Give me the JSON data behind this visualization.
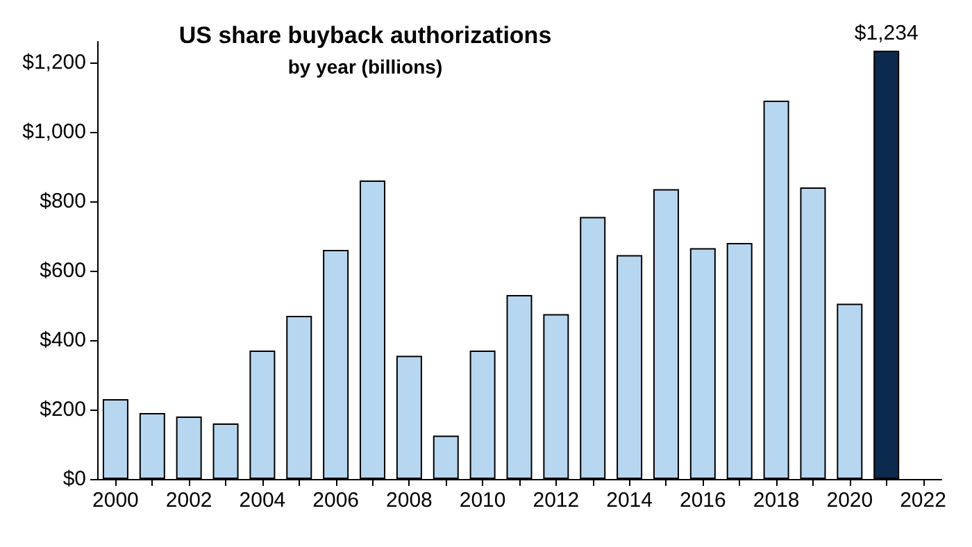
{
  "chart_data": {
    "type": "bar",
    "title": "US share buyback authorizations",
    "subtitle": "by year (billions)",
    "categories": [
      "2000",
      null,
      "2002",
      null,
      "2004",
      null,
      "2006",
      null,
      "2008",
      null,
      "2010",
      null,
      "2012",
      null,
      "2014",
      null,
      "2016",
      null,
      "2018",
      null,
      "2020",
      null,
      "2022"
    ],
    "values": [
      230,
      190,
      180,
      160,
      370,
      470,
      660,
      860,
      355,
      125,
      370,
      530,
      475,
      755,
      645,
      835,
      665,
      680,
      1090,
      840,
      505,
      1234,
      null
    ],
    "colors": [
      "#b7d7f1",
      "#b7d7f1",
      "#b7d7f1",
      "#b7d7f1",
      "#b7d7f1",
      "#b7d7f1",
      "#b7d7f1",
      "#b7d7f1",
      "#b7d7f1",
      "#b7d7f1",
      "#b7d7f1",
      "#b7d7f1",
      "#b7d7f1",
      "#b7d7f1",
      "#b7d7f1",
      "#b7d7f1",
      "#b7d7f1",
      "#b7d7f1",
      "#b7d7f1",
      "#b7d7f1",
      "#b7d7f1",
      "#0c2a4e",
      null
    ],
    "value_labels": [
      null,
      null,
      null,
      null,
      null,
      null,
      null,
      null,
      null,
      null,
      null,
      null,
      null,
      null,
      null,
      null,
      null,
      null,
      null,
      null,
      null,
      "$1,234",
      null
    ],
    "ylim": [
      0,
      1260
    ],
    "yticks": [
      {
        "value": 0,
        "label": "$0"
      },
      {
        "value": 200,
        "label": "$200"
      },
      {
        "value": 400,
        "label": "$400"
      },
      {
        "value": 600,
        "label": "$600"
      },
      {
        "value": 800,
        "label": "$800"
      },
      {
        "value": 1000,
        "label": "$1,000"
      },
      {
        "value": 1200,
        "label": "$1,200"
      }
    ],
    "grid": false
  }
}
